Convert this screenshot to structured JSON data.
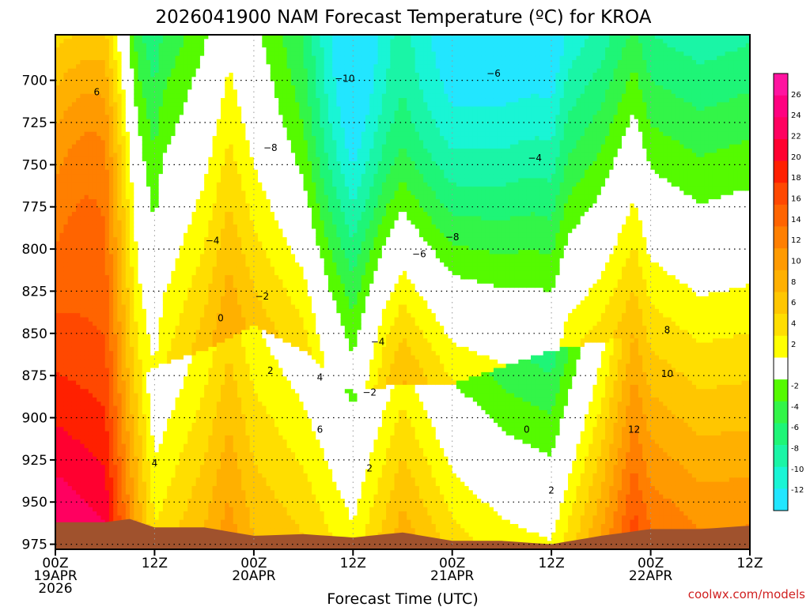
{
  "chart_data": {
    "type": "heatmap",
    "title": "2026041900 NAM Forecast Temperature (ºC) for KROA",
    "xlabel": "Forecast Time (UTC)",
    "ylabel": "",
    "credit": "coolwx.com/models",
    "x_ticks": [
      {
        "hours": 0,
        "lines": [
          "00Z",
          "19APR",
          "2026"
        ]
      },
      {
        "hours": 12,
        "lines": [
          "12Z"
        ]
      },
      {
        "hours": 24,
        "lines": [
          "00Z",
          "20APR"
        ]
      },
      {
        "hours": 36,
        "lines": [
          "12Z"
        ]
      },
      {
        "hours": 48,
        "lines": [
          "00Z",
          "21APR"
        ]
      },
      {
        "hours": 60,
        "lines": [
          "12Z"
        ]
      },
      {
        "hours": 72,
        "lines": [
          "00Z",
          "22APR"
        ]
      },
      {
        "hours": 84,
        "lines": [
          "12Z"
        ]
      }
    ],
    "x_range_hours": [
      0,
      84
    ],
    "y_ticks": [
      700,
      725,
      750,
      775,
      800,
      825,
      850,
      875,
      900,
      925,
      950,
      975
    ],
    "y_range_mb": [
      673,
      978
    ],
    "colorbar_ticks": [
      26,
      24,
      22,
      20,
      18,
      16,
      14,
      12,
      10,
      8,
      6,
      4,
      2,
      -2,
      -4,
      -6,
      -8,
      -10,
      -12
    ],
    "bands": [
      {
        "min": -14,
        "max": -12,
        "color": "#22e6ff"
      },
      {
        "min": -12,
        "max": -10,
        "color": "#19f5d5"
      },
      {
        "min": -10,
        "max": -8,
        "color": "#1af5a6"
      },
      {
        "min": -8,
        "max": -6,
        "color": "#1ef577"
      },
      {
        "min": -6,
        "max": -4,
        "color": "#33f548"
      },
      {
        "min": -4,
        "max": -2,
        "color": "#55fa00"
      },
      {
        "min": -2,
        "max": 2,
        "color": "#ffffff"
      },
      {
        "min": 2,
        "max": 4,
        "color": "#ffff00"
      },
      {
        "min": 4,
        "max": 6,
        "color": "#ffde00"
      },
      {
        "min": 6,
        "max": 8,
        "color": "#ffc600"
      },
      {
        "min": 8,
        "max": 10,
        "color": "#ffb000"
      },
      {
        "min": 10,
        "max": 12,
        "color": "#ff9a00"
      },
      {
        "min": 12,
        "max": 14,
        "color": "#ff7f00"
      },
      {
        "min": 14,
        "max": 16,
        "color": "#ff6400"
      },
      {
        "min": 16,
        "max": 18,
        "color": "#ff4800"
      },
      {
        "min": 18,
        "max": 20,
        "color": "#ff2000"
      },
      {
        "min": 20,
        "max": 22,
        "color": "#ff0030"
      },
      {
        "min": 22,
        "max": 24,
        "color": "#ff0060"
      },
      {
        "min": 24,
        "max": 26,
        "color": "#ff0080"
      },
      {
        "min": 26,
        "max": 28,
        "color": "#ff14a0"
      }
    ],
    "ground_color": "#a0522d",
    "zero_contour_color": "#c0106e",
    "surface_pressure_mb": [
      {
        "hours": 0,
        "mb": 962
      },
      {
        "hours": 6,
        "mb": 962
      },
      {
        "hours": 9,
        "mb": 960
      },
      {
        "hours": 12,
        "mb": 965
      },
      {
        "hours": 18,
        "mb": 965
      },
      {
        "hours": 24,
        "mb": 970
      },
      {
        "hours": 30,
        "mb": 969
      },
      {
        "hours": 36,
        "mb": 971
      },
      {
        "hours": 42,
        "mb": 968
      },
      {
        "hours": 48,
        "mb": 973
      },
      {
        "hours": 54,
        "mb": 973
      },
      {
        "hours": 60,
        "mb": 975
      },
      {
        "hours": 66,
        "mb": 970
      },
      {
        "hours": 72,
        "mb": 966
      },
      {
        "hours": 78,
        "mb": 966
      },
      {
        "hours": 84,
        "mb": 964
      }
    ],
    "surface_temp_c": [
      {
        "hours": 0,
        "t": 24
      },
      {
        "hours": 6,
        "t": 22
      },
      {
        "hours": 9,
        "t": 12
      },
      {
        "hours": 12,
        "t": 4
      },
      {
        "hours": 18,
        "t": 8
      },
      {
        "hours": 21,
        "t": 11
      },
      {
        "hours": 24,
        "t": 8
      },
      {
        "hours": 30,
        "t": 6
      },
      {
        "hours": 36,
        "t": 2.5
      },
      {
        "hours": 42,
        "t": 9
      },
      {
        "hours": 48,
        "t": 5
      },
      {
        "hours": 54,
        "t": 3
      },
      {
        "hours": 60,
        "t": 2.2
      },
      {
        "hours": 66,
        "t": 10
      },
      {
        "hours": 70,
        "t": 17
      },
      {
        "hours": 72,
        "t": 14
      },
      {
        "hours": 78,
        "t": 12
      },
      {
        "hours": 84,
        "t": 12
      }
    ],
    "lapse_c_per_100mb": [
      {
        "hours": 0,
        "r": 7
      },
      {
        "hours": 12,
        "r": 5
      },
      {
        "hours": 18,
        "r": 5
      },
      {
        "hours": 24,
        "r": 4.5
      },
      {
        "hours": 36,
        "r": 5.5
      },
      {
        "hours": 48,
        "r": 7
      },
      {
        "hours": 60,
        "r": 8
      },
      {
        "hours": 72,
        "r": 7.5
      },
      {
        "hours": 84,
        "r": 7
      }
    ],
    "inversion_mb": [
      {
        "hours": 0,
        "mb": 900
      },
      {
        "hours": 12,
        "mb": 870
      },
      {
        "hours": 18,
        "mb": 860
      },
      {
        "hours": 24,
        "mb": 845
      },
      {
        "hours": 30,
        "mb": 860
      },
      {
        "hours": 36,
        "mb": 885
      },
      {
        "hours": 42,
        "mb": 880
      },
      {
        "hours": 48,
        "mb": 880
      },
      {
        "hours": 54,
        "mb": 870
      },
      {
        "hours": 60,
        "mb": 860
      },
      {
        "hours": 72,
        "mb": 850
      },
      {
        "hours": 84,
        "mb": 850
      }
    ],
    "inversion_strength_c": [
      {
        "hours": 0,
        "s": 0
      },
      {
        "hours": 10,
        "s": 0
      },
      {
        "hours": 13,
        "s": 4
      },
      {
        "hours": 24,
        "s": 5
      },
      {
        "hours": 30,
        "s": 5
      },
      {
        "hours": 33,
        "s": 3
      },
      {
        "hours": 36,
        "s": 2
      },
      {
        "hours": 40,
        "s": 5
      },
      {
        "hours": 48,
        "s": 6
      },
      {
        "hours": 58,
        "s": 8
      },
      {
        "hours": 62,
        "s": 8
      },
      {
        "hours": 66,
        "s": 4
      },
      {
        "hours": 70,
        "s": 0
      },
      {
        "hours": 84,
        "s": 0
      }
    ],
    "contour_labels": [
      {
        "text": "6",
        "hours": 5,
        "mb": 707
      },
      {
        "text": "−10",
        "hours": 35,
        "mb": 699
      },
      {
        "text": "−6",
        "hours": 53,
        "mb": 696
      },
      {
        "text": "−8",
        "hours": 26,
        "mb": 740
      },
      {
        "text": "−4",
        "hours": 58,
        "mb": 746
      },
      {
        "text": "−4",
        "hours": 19,
        "mb": 795
      },
      {
        "text": "−8",
        "hours": 48,
        "mb": 793
      },
      {
        "text": "−6",
        "hours": 44,
        "mb": 803
      },
      {
        "text": "−2",
        "hours": 25,
        "mb": 828
      },
      {
        "text": "0",
        "hours": 20,
        "mb": 841
      },
      {
        "text": "−4",
        "hours": 39,
        "mb": 855
      },
      {
        "text": "8",
        "hours": 74,
        "mb": 848
      },
      {
        "text": "2",
        "hours": 26,
        "mb": 872
      },
      {
        "text": "4",
        "hours": 32,
        "mb": 876
      },
      {
        "text": "10",
        "hours": 74,
        "mb": 874
      },
      {
        "text": "−2",
        "hours": 38,
        "mb": 885
      },
      {
        "text": "0",
        "hours": 57,
        "mb": 907
      },
      {
        "text": "6",
        "hours": 32,
        "mb": 907
      },
      {
        "text": "12",
        "hours": 70,
        "mb": 907
      },
      {
        "text": "4",
        "hours": 12,
        "mb": 927
      },
      {
        "text": "2",
        "hours": 38,
        "mb": 930
      },
      {
        "text": "2",
        "hours": 60,
        "mb": 943
      }
    ]
  }
}
